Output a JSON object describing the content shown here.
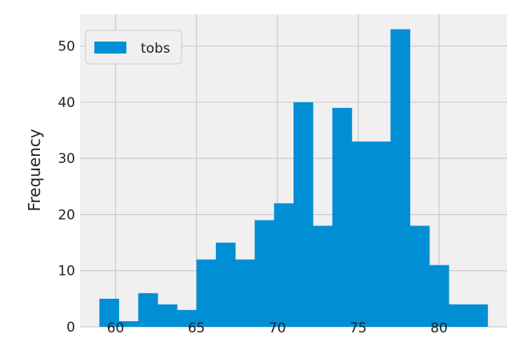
{
  "chart_data": {
    "type": "histogram",
    "ylabel": "Frequency",
    "xlabel": "",
    "title": "",
    "legend": {
      "placement": "top-left",
      "entries": [
        "tobs"
      ]
    },
    "grid": true,
    "xlim": [
      57.8,
      84.2
    ],
    "ylim": [
      0,
      55.65
    ],
    "x_ticks": [
      60,
      65,
      70,
      75,
      80
    ],
    "y_ticks": [
      0,
      10,
      20,
      30,
      40,
      50
    ],
    "bin_range": [
      59.0,
      83.0
    ],
    "series": [
      {
        "name": "tobs",
        "color": "#008fd5",
        "values": [
          5,
          1,
          6,
          4,
          3,
          12,
          15,
          12,
          19,
          22,
          40,
          18,
          39,
          33,
          33,
          53,
          18,
          11,
          4,
          4
        ]
      }
    ]
  },
  "colors": {
    "background": "#ffffff",
    "plot_background": "#f0f0f0",
    "grid": "#cbcbcb",
    "bar": "#008fd5",
    "text": "#222222"
  }
}
